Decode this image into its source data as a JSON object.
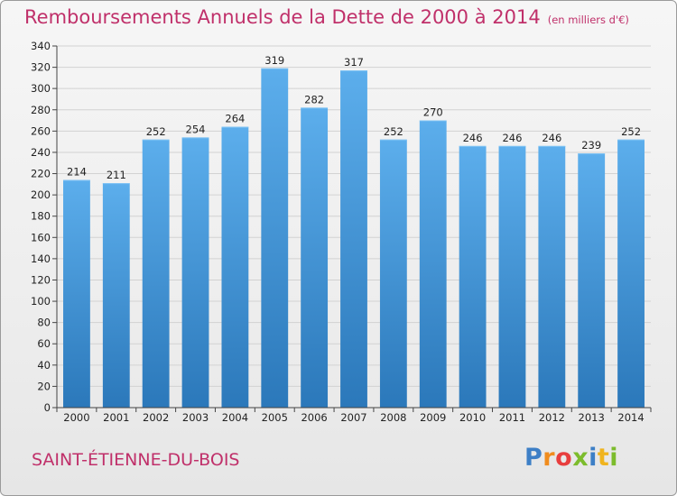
{
  "title": "Remboursements Annuels de la Dette de 2000 à 2014",
  "unit": "(en milliers d'€)",
  "commune": "SAINT-ÉTIENNE-DU-BOIS",
  "logo": {
    "text": "Proxiti",
    "icon": "proxiti-logo"
  },
  "colors": {
    "title": "#c0306a",
    "bar_top": "#5aa9e8",
    "bar_bottom": "#2a77b8",
    "grid": "#d4d4d4"
  },
  "chart_data": {
    "type": "bar",
    "title": "Remboursements Annuels de la Dette de 2000 à 2014",
    "subtitle": "(en milliers d'€)",
    "categories": [
      "2000",
      "2001",
      "2002",
      "2003",
      "2004",
      "2005",
      "2006",
      "2007",
      "2008",
      "2009",
      "2010",
      "2011",
      "2012",
      "2013",
      "2014"
    ],
    "values": [
      214,
      211,
      252,
      254,
      264,
      319,
      282,
      317,
      252,
      270,
      246,
      246,
      246,
      239,
      252
    ],
    "xlabel": "",
    "ylabel": "",
    "ylim": [
      0,
      340
    ],
    "ytick_step": 20,
    "grid": true,
    "data_labels": true
  }
}
